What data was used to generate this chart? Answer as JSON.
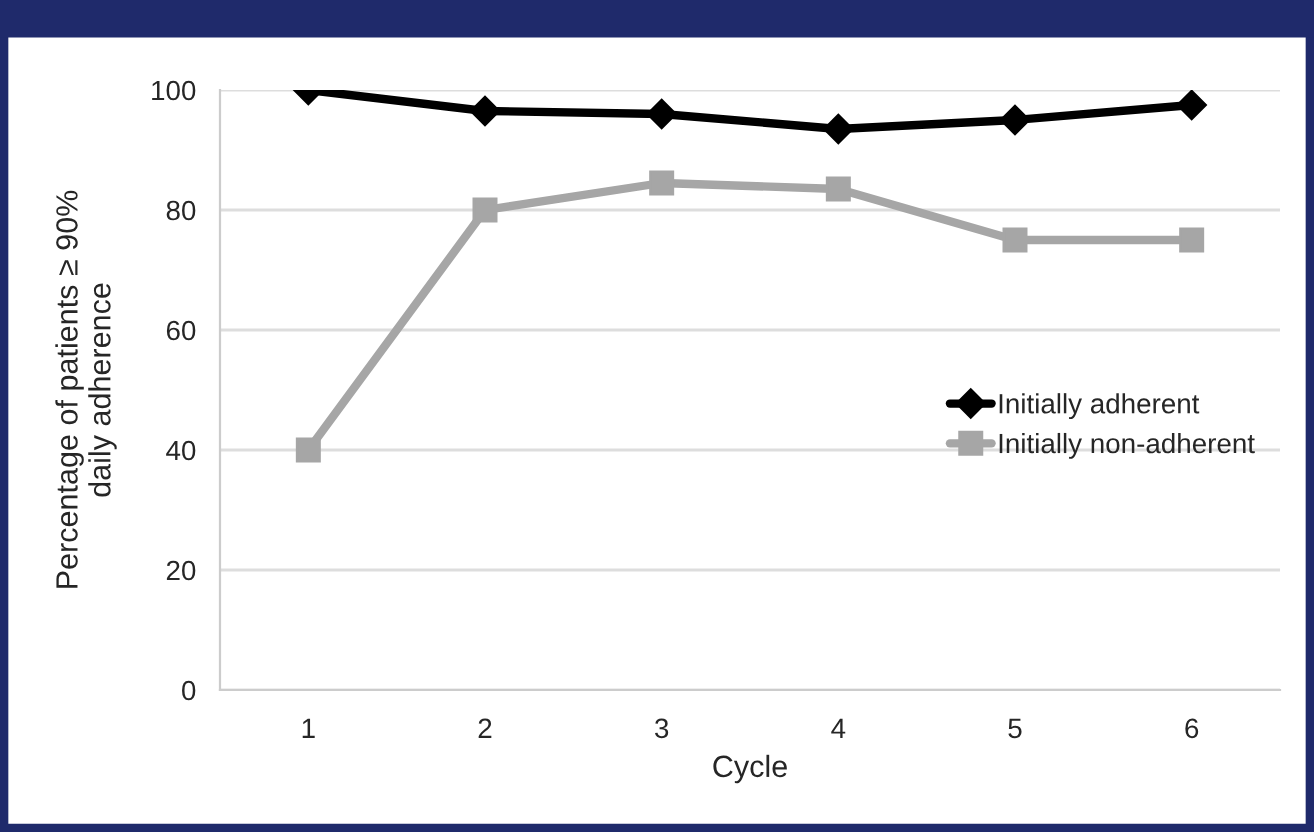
{
  "chart_data": {
    "type": "line",
    "xlabel": "Cycle",
    "ylabel": "Percentage of patients ≥ 90%\ndaily adherence",
    "categories": [
      "1",
      "2",
      "3",
      "4",
      "5",
      "6"
    ],
    "series": [
      {
        "name": "Initially adherent",
        "color": "#000000",
        "values": [
          100,
          96.5,
          96,
          93.5,
          95,
          97.5
        ],
        "marker": "diamond"
      },
      {
        "name": "Initially non-adherent",
        "color": "#a6a6a6",
        "values": [
          40,
          80,
          84.5,
          83.5,
          75,
          75
        ],
        "marker": "square"
      }
    ],
    "ylim": [
      0,
      100
    ],
    "yticks": [
      0,
      20,
      40,
      60,
      80,
      100
    ],
    "grid": "y",
    "legend": "right",
    "line_style": "solid"
  }
}
